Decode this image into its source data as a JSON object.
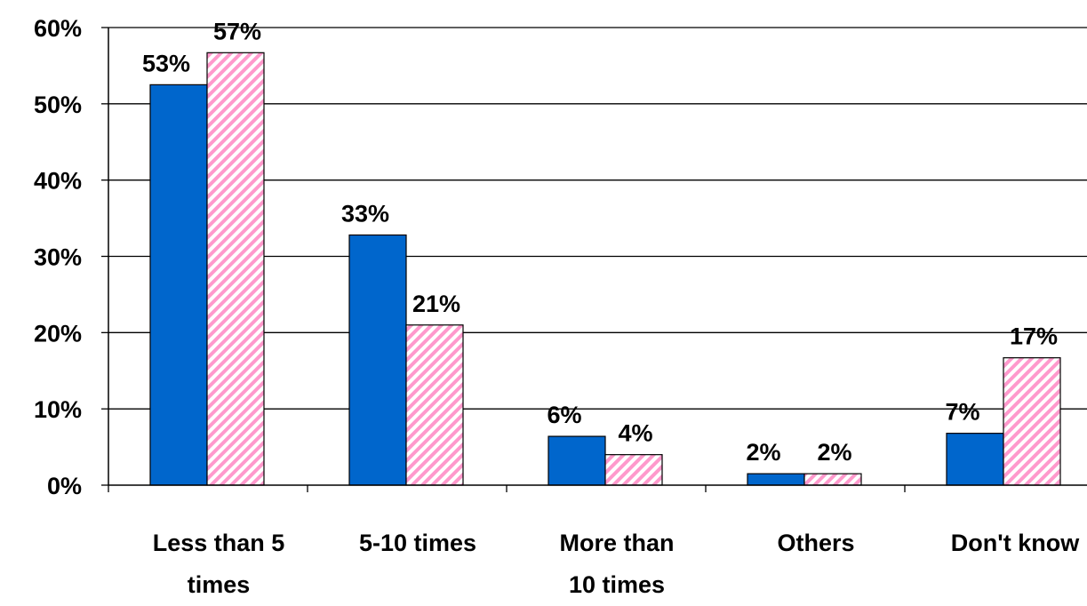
{
  "chart_data": {
    "type": "bar",
    "categories": [
      [
        "Less than 5",
        "times"
      ],
      [
        "5-10 times"
      ],
      [
        "More than",
        "10 times"
      ],
      [
        "Others"
      ],
      [
        "Don't know"
      ]
    ],
    "series": [
      {
        "values": [
          52.5,
          32.8,
          6.4,
          1.5,
          6.8
        ],
        "labels": [
          "53%",
          "33%",
          "6%",
          "2%",
          "7%"
        ],
        "color": "#0066cc",
        "pattern": "solid"
      },
      {
        "values": [
          56.7,
          21.0,
          4.0,
          1.5,
          16.7
        ],
        "labels": [
          "57%",
          "21%",
          "4%",
          "2%",
          "17%"
        ],
        "color": "#ff99cc",
        "pattern": "diagonal-hatch"
      }
    ],
    "ylim": [
      0,
      60
    ],
    "yticks": [
      0,
      10,
      20,
      30,
      40,
      50,
      60
    ],
    "ytick_labels": [
      "0%",
      "10%",
      "20%",
      "30%",
      "40%",
      "50%",
      "60%"
    ],
    "grid": true,
    "legend": false,
    "title": "",
    "xlabel": "",
    "ylabel": ""
  }
}
